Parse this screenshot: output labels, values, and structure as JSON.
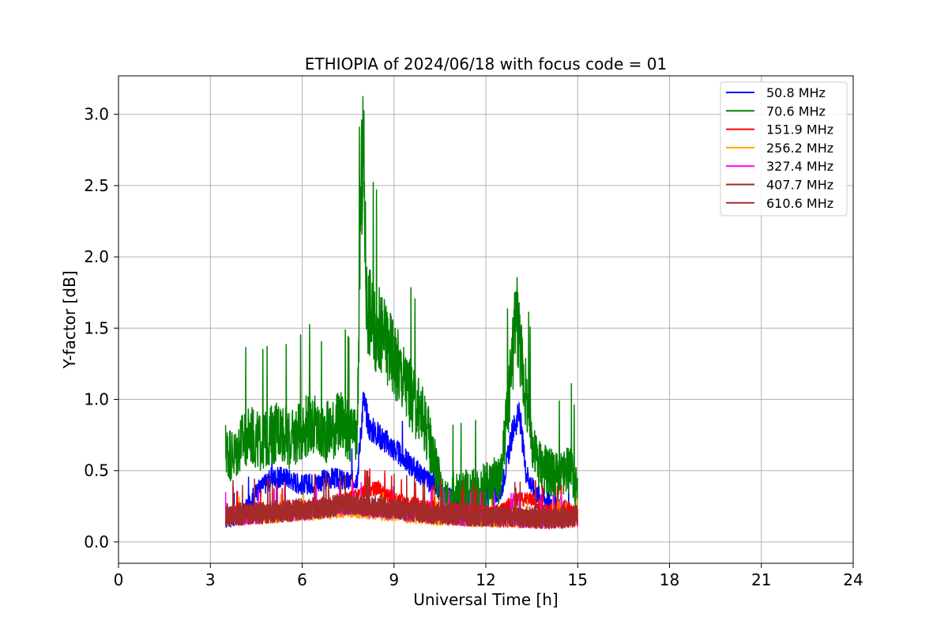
{
  "chart_data": {
    "type": "line",
    "title": "ETHIOPIA of 2024/06/18 with focus code = 01",
    "xlabel": "Universal Time [h]",
    "ylabel": "Y-factor [dB]",
    "xlim": [
      0,
      24
    ],
    "ylim": [
      -0.15,
      3.27
    ],
    "xticks": [
      0,
      3,
      6,
      9,
      12,
      15,
      18,
      21,
      24
    ],
    "xtick_labels": [
      "0",
      "3",
      "6",
      "9",
      "12",
      "15",
      "18",
      "21",
      "24"
    ],
    "yticks": [
      0.0,
      0.5,
      1.0,
      1.5,
      2.0,
      2.5,
      3.0
    ],
    "ytick_labels": [
      "0.0",
      "0.5",
      "1.0",
      "1.5",
      "2.0",
      "2.5",
      "3.0"
    ],
    "grid": true,
    "legend_position": "top-right",
    "series": [
      {
        "name": " 50.8 MHz",
        "color": "#0000ff",
        "x": [
          3.5,
          4.0,
          4.5,
          5.0,
          5.5,
          6.0,
          6.5,
          7.0,
          7.5,
          7.8,
          8.0,
          8.2,
          8.5,
          9.0,
          9.5,
          10.0,
          10.5,
          11.0,
          11.5,
          12.0,
          12.5,
          12.9,
          13.1,
          13.3,
          13.6,
          14.0,
          14.5,
          15.0
        ],
        "y": [
          0.15,
          0.18,
          0.35,
          0.45,
          0.45,
          0.4,
          0.42,
          0.45,
          0.42,
          0.45,
          1.0,
          0.8,
          0.75,
          0.65,
          0.55,
          0.45,
          0.35,
          0.3,
          0.3,
          0.3,
          0.35,
          0.8,
          0.9,
          0.5,
          0.35,
          0.3,
          0.25,
          0.15
        ]
      },
      {
        "name": " 70.6 MHz",
        "color": "#008000",
        "x": [
          3.5,
          3.8,
          4.0,
          4.3,
          4.6,
          5.0,
          5.3,
          5.6,
          6.0,
          6.3,
          6.6,
          7.0,
          7.3,
          7.6,
          7.8,
          7.9,
          8.0,
          8.1,
          8.3,
          8.6,
          9.0,
          9.3,
          9.6,
          10.0,
          10.3,
          10.6,
          11.0,
          11.5,
          12.0,
          12.5,
          12.9,
          13.0,
          13.2,
          13.4,
          13.6,
          14.0,
          14.5,
          14.8,
          15.0
        ],
        "y": [
          0.65,
          0.6,
          0.7,
          0.75,
          0.7,
          0.75,
          0.8,
          0.7,
          0.8,
          0.85,
          0.75,
          0.8,
          0.85,
          0.75,
          0.7,
          2.3,
          2.8,
          1.7,
          1.55,
          1.45,
          1.3,
          1.15,
          1.0,
          0.85,
          0.6,
          0.3,
          0.35,
          0.35,
          0.4,
          0.45,
          1.35,
          1.65,
          1.2,
          0.9,
          0.6,
          0.5,
          0.45,
          0.55,
          0.3
        ]
      },
      {
        "name": "151.9 MHz",
        "color": "#ff0000",
        "x": [
          3.5,
          5.0,
          6.5,
          7.5,
          8.0,
          8.5,
          9.0,
          10.0,
          11.0,
          12.0,
          12.5,
          13.0,
          13.5,
          14.0,
          14.5,
          15.0
        ],
        "y": [
          0.2,
          0.22,
          0.25,
          0.3,
          0.35,
          0.38,
          0.3,
          0.25,
          0.23,
          0.2,
          0.22,
          0.3,
          0.3,
          0.22,
          0.25,
          0.2
        ]
      },
      {
        "name": "256.2 MHz",
        "color": "#ffa500",
        "x": [
          3.5,
          5.0,
          6.5,
          7.5,
          8.5,
          10.0,
          11.5,
          13.0,
          14.0,
          15.0
        ],
        "y": [
          0.16,
          0.18,
          0.2,
          0.22,
          0.2,
          0.17,
          0.15,
          0.15,
          0.14,
          0.15
        ]
      },
      {
        "name": "327.4 MHz",
        "color": "#ff00ff",
        "x": [
          3.5,
          5.0,
          6.5,
          7.5,
          8.5,
          10.0,
          11.5,
          13.0,
          14.0,
          15.0
        ],
        "y": [
          0.17,
          0.19,
          0.22,
          0.25,
          0.22,
          0.19,
          0.17,
          0.16,
          0.15,
          0.16
        ]
      },
      {
        "name": "407.7 MHz",
        "color": "#a52a2a",
        "x": [
          3.5,
          5.0,
          6.5,
          7.5,
          8.5,
          10.0,
          11.5,
          13.0,
          14.0,
          15.0
        ],
        "y": [
          0.18,
          0.2,
          0.23,
          0.26,
          0.24,
          0.2,
          0.18,
          0.17,
          0.16,
          0.17
        ]
      },
      {
        "name": "610.6 MHz",
        "color": "#a52a2a",
        "x": [
          3.5,
          5.0,
          6.5,
          7.5,
          8.5,
          10.0,
          11.5,
          13.0,
          14.0,
          15.0
        ],
        "y": [
          0.19,
          0.21,
          0.24,
          0.27,
          0.25,
          0.21,
          0.19,
          0.18,
          0.17,
          0.18
        ]
      }
    ]
  }
}
